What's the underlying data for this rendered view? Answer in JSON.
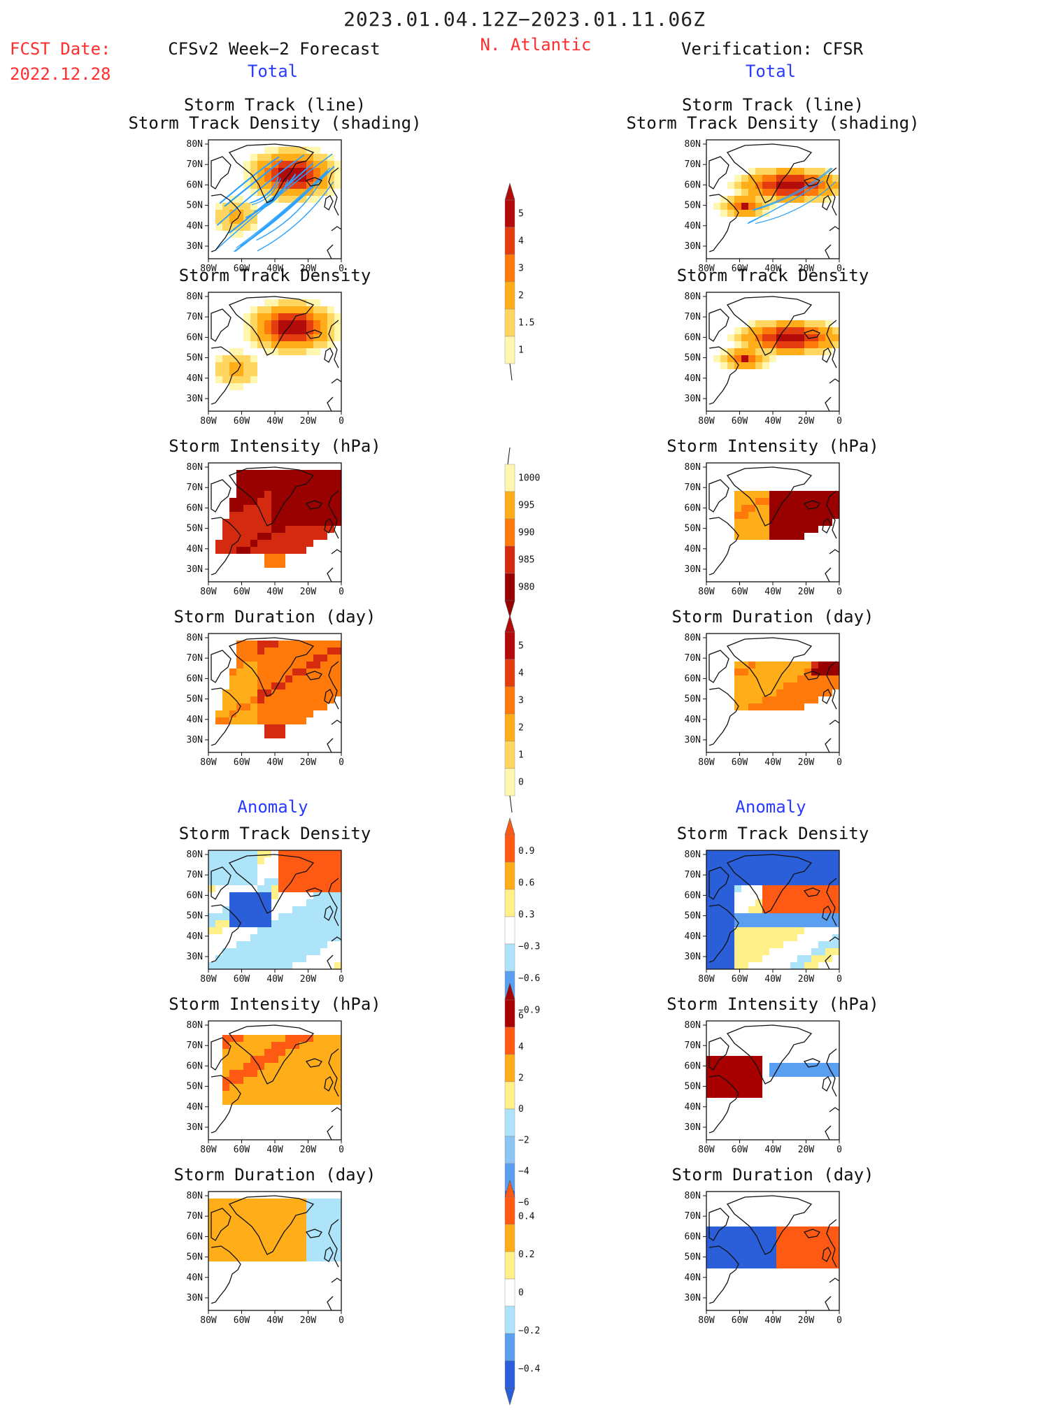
{
  "header": {
    "title": "2023.01.04.12Z−2023.01.11.06Z",
    "fcst_label": "FCST Date:",
    "fcst_date": "2022.12.28",
    "left_title": "CFSv2 Week−2 Forecast",
    "region": "N. Atlantic",
    "right_title": "Verification: CFSR",
    "total_left": "Total",
    "total_right": "Total"
  },
  "sections": {
    "anomaly_left": "Anomaly",
    "anomaly_right": "Anomaly"
  },
  "panel_titles": {
    "track_line": "Storm Track (line)",
    "track_density_shading": "Storm Track Density (shading)",
    "track_density": "Storm Track Density",
    "intensity": "Storm Intensity (hPa)",
    "duration": "Storm Duration (day)"
  },
  "axes": {
    "lat_labels": [
      "80N",
      "70N",
      "60N",
      "50N",
      "40N",
      "30N"
    ],
    "lon_labels": [
      "80W",
      "60W",
      "40W",
      "20W",
      "0"
    ]
  },
  "colorbars": {
    "density_total": [
      "5",
      "4",
      "3",
      "2",
      "1.5",
      "1"
    ],
    "intensity_total": [
      "1000",
      "995",
      "990",
      "985",
      "980"
    ],
    "duration_total": [
      "5",
      "4",
      "3",
      "2",
      "1",
      "0"
    ],
    "density_anom": [
      "0.9",
      "0.6",
      "0.3",
      "−0.3",
      "−0.6",
      "−0.9"
    ],
    "intensity_anom": [
      "6",
      "4",
      "2",
      "0",
      "−2",
      "−4",
      "−6"
    ],
    "duration_anom": [
      "0.4",
      "0.2",
      "0",
      "−0.2",
      "−0.4"
    ]
  },
  "colors": {
    "dens_total": [
      "#fff7b0",
      "#ffd760",
      "#ffae1a",
      "#ff7a0a",
      "#e23c0f",
      "#b30a0a"
    ],
    "int_total": [
      "#fff7b0",
      "#ffae1a",
      "#ff7a0a",
      "#d42a0f",
      "#990000"
    ],
    "anom": [
      "#2a5fd9",
      "#5a9ff0",
      "#aee4fa",
      "#ffffff",
      "#fff08a",
      "#ffae1a",
      "#ff5a14",
      "#a80000"
    ],
    "track_line": "#2aa0ff"
  }
}
